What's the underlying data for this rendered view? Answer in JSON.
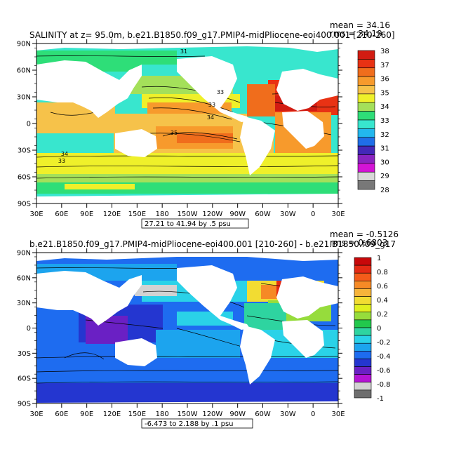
{
  "chart_data": [
    {
      "type": "heatmap",
      "title": "SALINITY at z=  95.0m, b.e21.B1850.f09_g17.PMIP4-midPliocene-eoi400.001  [210-260]",
      "stats": {
        "mean_label": "mean = 34.16",
        "rms_label": "rms = 34.19"
      },
      "x_ticks": [
        "30E",
        "60E",
        "90E",
        "120E",
        "150E",
        "180",
        "150W",
        "120W",
        "90W",
        "60W",
        "30W",
        "0",
        "30E"
      ],
      "y_ticks": [
        "90N",
        "60N",
        "30N",
        "0",
        "30S",
        "60S",
        "90S"
      ],
      "ylim": [
        -90,
        90
      ],
      "contour_note": "27.21 to 41.94 by .5 psu",
      "contour_labels": [
        "31",
        "33",
        "33",
        "34",
        "35",
        "34",
        "33"
      ],
      "colorbar": {
        "labels": [
          "38",
          "37",
          "36",
          "35",
          "34",
          "33",
          "32",
          "31",
          "30",
          "29",
          "28"
        ],
        "colors": [
          "#d21c12",
          "#e83214",
          "#f06d1c",
          "#f79a2c",
          "#f6c24a",
          "#eff02a",
          "#a4e05a",
          "#2ede78",
          "#38e6ce",
          "#22b7ee",
          "#1f6ee8",
          "#4428b8",
          "#8a24c0",
          "#d414d6",
          "#d8d8d8",
          "#787878"
        ]
      }
    },
    {
      "type": "heatmap",
      "title": "b.e21.B1850.f09_g17.PMIP4-midPliocene-eoi400.001  [210-260]  - b.e21.B1850.f09_g17",
      "stats": {
        "mean_label": "mean = -0.5126",
        "rms_label": "rms = 0.6803"
      },
      "x_ticks": [
        "30E",
        "60E",
        "90E",
        "120E",
        "150E",
        "180",
        "150W",
        "120W",
        "90W",
        "60W",
        "30W",
        "0",
        "30E"
      ],
      "y_ticks": [
        "90N",
        "60N",
        "30N",
        "0",
        "30S",
        "60S",
        "90S"
      ],
      "ylim": [
        -90,
        90
      ],
      "contour_note": "-6.473 to 2.188 by .1 psu",
      "colorbar": {
        "labels": [
          "1",
          "0.8",
          "0.6",
          "0.4",
          "0.2",
          "0",
          "-0.2",
          "-0.4",
          "-0.6",
          "-0.8",
          "-1"
        ],
        "colors": [
          "#c8080a",
          "#e42a14",
          "#f45c1a",
          "#f68a26",
          "#f7b43a",
          "#f2dc32",
          "#e0f01e",
          "#96dc3c",
          "#22c84c",
          "#2ed4a0",
          "#2ad2e8",
          "#1ca4ee",
          "#1e6cf0",
          "#2436d0",
          "#6a20c4",
          "#b414d4",
          "#d2d2d2",
          "#6e6e6e"
        ]
      }
    }
  ]
}
